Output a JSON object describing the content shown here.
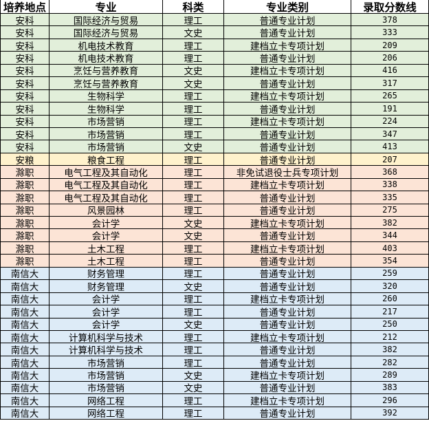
{
  "colors": {
    "安科": "#e2efda",
    "安粮": "#fff2cc",
    "滁职": "#fce4d6",
    "南信大": "#ddebf7"
  },
  "table": {
    "headers": [
      "培养地点",
      "专业",
      "科类",
      "专业类别",
      "录取分数线"
    ],
    "rows": [
      [
        "安科",
        "国际经济与贸易",
        "理工",
        "普通专业计划",
        "378"
      ],
      [
        "安科",
        "国际经济与贸易",
        "文史",
        "普通专业计划",
        "333"
      ],
      [
        "安科",
        "机电技术教育",
        "理工",
        "建档立卡专项计划",
        "209"
      ],
      [
        "安科",
        "机电技术教育",
        "理工",
        "普通专业计划",
        "206"
      ],
      [
        "安科",
        "烹饪与营养教育",
        "文史",
        "建档立卡专项计划",
        "416"
      ],
      [
        "安科",
        "烹饪与营养教育",
        "文史",
        "普通专业计划",
        "317"
      ],
      [
        "安科",
        "生物科学",
        "理工",
        "建档立卡专项计划",
        "265"
      ],
      [
        "安科",
        "生物科学",
        "理工",
        "普通专业计划",
        "191"
      ],
      [
        "安科",
        "市场营销",
        "理工",
        "建档立卡专项计划",
        "224"
      ],
      [
        "安科",
        "市场营销",
        "理工",
        "普通专业计划",
        "347"
      ],
      [
        "安科",
        "市场营销",
        "文史",
        "普通专业计划",
        "413"
      ],
      [
        "安粮",
        "粮食工程",
        "理工",
        "普通专业计划",
        "207"
      ],
      [
        "滁职",
        "电气工程及其自动化",
        "理工",
        "非免试退役士兵专项计划",
        "368"
      ],
      [
        "滁职",
        "电气工程及其自动化",
        "理工",
        "建档立卡专项计划",
        "338"
      ],
      [
        "滁职",
        "电气工程及其自动化",
        "理工",
        "普通专业计划",
        "335"
      ],
      [
        "滁职",
        "风景园林",
        "理工",
        "普通专业计划",
        "275"
      ],
      [
        "滁职",
        "会计学",
        "文史",
        "建档立卡专项计划",
        "382"
      ],
      [
        "滁职",
        "会计学",
        "文史",
        "普通专业计划",
        "344"
      ],
      [
        "滁职",
        "土木工程",
        "理工",
        "建档立卡专项计划",
        "403"
      ],
      [
        "滁职",
        "土木工程",
        "理工",
        "普通专业计划",
        "354"
      ],
      [
        "南信大",
        "财务管理",
        "理工",
        "普通专业计划",
        "259"
      ],
      [
        "南信大",
        "财务管理",
        "文史",
        "普通专业计划",
        "320"
      ],
      [
        "南信大",
        "会计学",
        "理工",
        "建档立卡专项计划",
        "260"
      ],
      [
        "南信大",
        "会计学",
        "理工",
        "普通专业计划",
        "217"
      ],
      [
        "南信大",
        "会计学",
        "文史",
        "普通专业计划",
        "250"
      ],
      [
        "南信大",
        "计算机科学与技术",
        "理工",
        "建档立卡专项计划",
        "212"
      ],
      [
        "南信大",
        "计算机科学与技术",
        "理工",
        "普通专业计划",
        "382"
      ],
      [
        "南信大",
        "市场营销",
        "理工",
        "普通专业计划",
        "282"
      ],
      [
        "南信大",
        "市场营销",
        "文史",
        "建档立卡专项计划",
        "289"
      ],
      [
        "南信大",
        "市场营销",
        "文史",
        "普通专业计划",
        "383"
      ],
      [
        "南信大",
        "网络工程",
        "理工",
        "建档立卡专项计划",
        "296"
      ],
      [
        "南信大",
        "网络工程",
        "理工",
        "普通专业计划",
        "392"
      ]
    ]
  }
}
